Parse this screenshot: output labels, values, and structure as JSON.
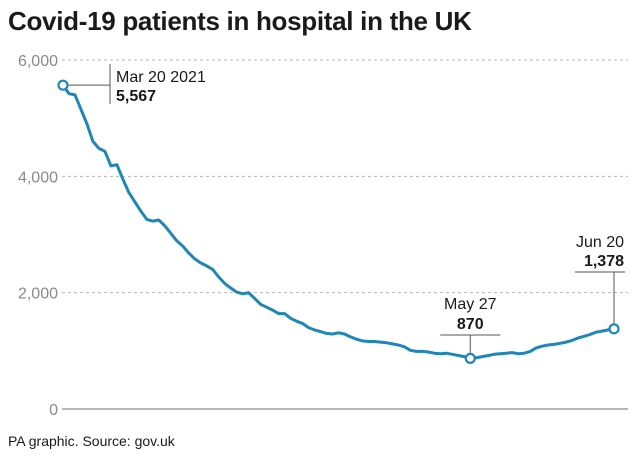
{
  "title": "Covid-19 patients in hospital in the UK",
  "source": "PA graphic. Source: gov.uk",
  "colors": {
    "line": "#1f86b8",
    "grid": "#b5b5b5",
    "axis": "#8a8a8a",
    "text": "#1a1a1a"
  },
  "chart_data": {
    "type": "line",
    "title": "Covid-19 patients in hospital in the UK",
    "xlabel": "",
    "ylabel": "",
    "ylim": [
      0,
      6000
    ],
    "yticks": [
      0,
      2000,
      4000,
      6000
    ],
    "ytick_labels": [
      "0",
      "2,000",
      "4,000",
      "6,000"
    ],
    "grid": true,
    "x_range": [
      "2021-03-20",
      "2021-06-20"
    ],
    "series": [
      {
        "x": [
          "2021-03-20",
          "2021-03-21",
          "2021-03-22",
          "2021-03-23",
          "2021-03-24",
          "2021-03-25",
          "2021-03-26",
          "2021-03-27",
          "2021-03-28",
          "2021-03-29",
          "2021-03-30",
          "2021-03-31",
          "2021-04-01",
          "2021-04-02",
          "2021-04-03",
          "2021-04-04",
          "2021-04-05",
          "2021-04-06",
          "2021-04-07",
          "2021-04-08",
          "2021-04-09",
          "2021-04-10",
          "2021-04-11",
          "2021-04-12",
          "2021-04-13",
          "2021-04-14",
          "2021-04-15",
          "2021-04-16",
          "2021-04-17",
          "2021-04-18",
          "2021-04-19",
          "2021-04-20",
          "2021-04-21",
          "2021-04-22",
          "2021-04-23",
          "2021-04-24",
          "2021-04-25",
          "2021-04-26",
          "2021-04-27",
          "2021-04-28",
          "2021-04-29",
          "2021-04-30",
          "2021-05-01",
          "2021-05-02",
          "2021-05-03",
          "2021-05-04",
          "2021-05-05",
          "2021-05-06",
          "2021-05-07",
          "2021-05-08",
          "2021-05-09",
          "2021-05-10",
          "2021-05-11",
          "2021-05-12",
          "2021-05-13",
          "2021-05-14",
          "2021-05-15",
          "2021-05-16",
          "2021-05-17",
          "2021-05-18",
          "2021-05-19",
          "2021-05-20",
          "2021-05-21",
          "2021-05-22",
          "2021-05-23",
          "2021-05-24",
          "2021-05-25",
          "2021-05-26",
          "2021-05-27",
          "2021-05-28",
          "2021-05-29",
          "2021-05-30",
          "2021-05-31",
          "2021-06-01",
          "2021-06-02",
          "2021-06-03",
          "2021-06-04",
          "2021-06-05",
          "2021-06-06",
          "2021-06-07",
          "2021-06-08",
          "2021-06-09",
          "2021-06-10",
          "2021-06-11",
          "2021-06-12",
          "2021-06-13",
          "2021-06-14",
          "2021-06-15",
          "2021-06-16",
          "2021-06-17",
          "2021-06-18",
          "2021-06-19",
          "2021-06-20"
        ],
        "values": [
          5567,
          5420,
          5400,
          5150,
          4900,
          4600,
          4480,
          4430,
          4180,
          4200,
          3950,
          3720,
          3560,
          3400,
          3260,
          3230,
          3250,
          3150,
          3020,
          2890,
          2800,
          2680,
          2580,
          2510,
          2460,
          2400,
          2270,
          2160,
          2080,
          2010,
          1980,
          2000,
          1900,
          1800,
          1750,
          1700,
          1640,
          1640,
          1560,
          1510,
          1470,
          1400,
          1360,
          1330,
          1300,
          1290,
          1310,
          1290,
          1240,
          1200,
          1170,
          1160,
          1160,
          1150,
          1140,
          1120,
          1100,
          1070,
          1010,
          990,
          990,
          980,
          960,
          950,
          960,
          940,
          920,
          900,
          870,
          880,
          900,
          920,
          940,
          950,
          960,
          970,
          950,
          960,
          990,
          1050,
          1080,
          1100,
          1110,
          1130,
          1150,
          1180,
          1220,
          1250,
          1280,
          1320,
          1340,
          1360,
          1378
        ]
      }
    ],
    "annotations": [
      {
        "date_label": "Mar 20 2021",
        "value_label": "5,567",
        "x": "2021-03-20",
        "y": 5567
      },
      {
        "date_label": "May 27",
        "value_label": "870",
        "x": "2021-05-27",
        "y": 870
      },
      {
        "date_label": "Jun 20",
        "value_label": "1,378",
        "x": "2021-06-20",
        "y": 1378
      }
    ]
  }
}
